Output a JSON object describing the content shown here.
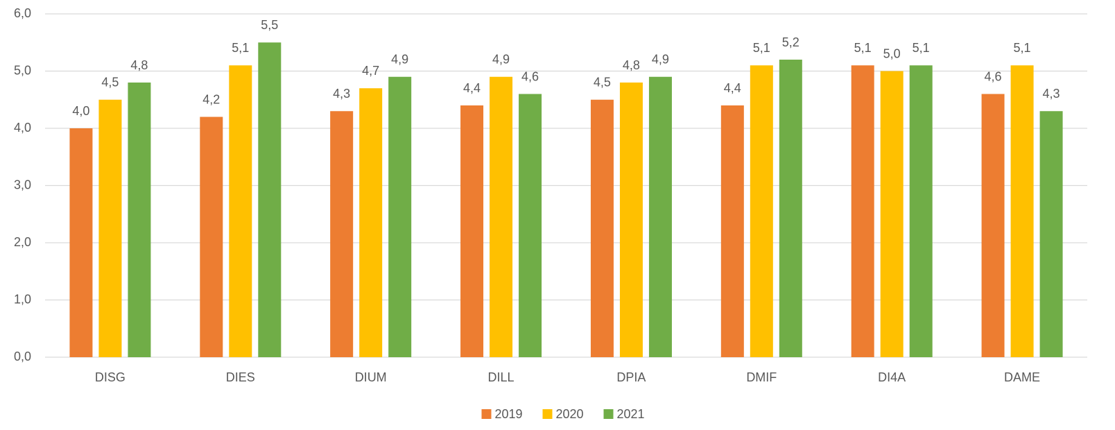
{
  "chart_data": {
    "type": "bar",
    "categories": [
      "DISG",
      "DIES",
      "DIUM",
      "DILL",
      "DPIA",
      "DMIF",
      "DI4A",
      "DAME"
    ],
    "series": [
      {
        "name": "2019",
        "color": "#ed7d31",
        "values": [
          4.0,
          4.2,
          4.3,
          4.4,
          4.5,
          4.4,
          5.1,
          4.6
        ],
        "value_labels": [
          "4,0",
          "4,2",
          "4,3",
          "4,4",
          "4,5",
          "4,4",
          "5,1",
          "4,6"
        ]
      },
      {
        "name": "2020",
        "color": "#ffc000",
        "values": [
          4.5,
          5.1,
          4.7,
          4.9,
          4.8,
          5.1,
          5.0,
          5.1
        ],
        "value_labels": [
          "4,5",
          "5,1",
          "4,7",
          "4,9",
          "4,8",
          "5,1",
          "5,0",
          "5,1"
        ]
      },
      {
        "name": "2021",
        "color": "#70ad47",
        "values": [
          4.8,
          5.5,
          4.9,
          4.6,
          4.9,
          5.2,
          5.1,
          4.3
        ],
        "value_labels": [
          "4,8",
          "5,5",
          "4,9",
          "4,6",
          "4,9",
          "5,2",
          "5,1",
          "4,3"
        ]
      }
    ],
    "ylim": [
      0,
      6
    ],
    "yticks": [
      {
        "value": 0,
        "label": "0,0"
      },
      {
        "value": 1,
        "label": "1,0"
      },
      {
        "value": 2,
        "label": "2,0"
      },
      {
        "value": 3,
        "label": "3,0"
      },
      {
        "value": 4,
        "label": "4,0"
      },
      {
        "value": 5,
        "label": "5,0"
      },
      {
        "value": 6,
        "label": "6,0"
      }
    ],
    "grid": true,
    "legend": "bottom"
  }
}
